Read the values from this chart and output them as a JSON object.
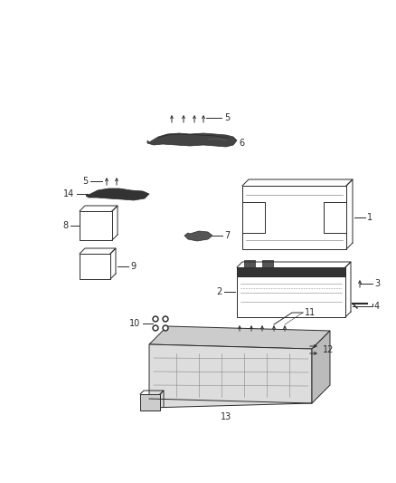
{
  "bg_color": "#ffffff",
  "fig_width": 4.38,
  "fig_height": 5.33,
  "dpi": 100,
  "gray": "#2a2a2a",
  "lgray": "#888888",
  "mgray": "#555555"
}
